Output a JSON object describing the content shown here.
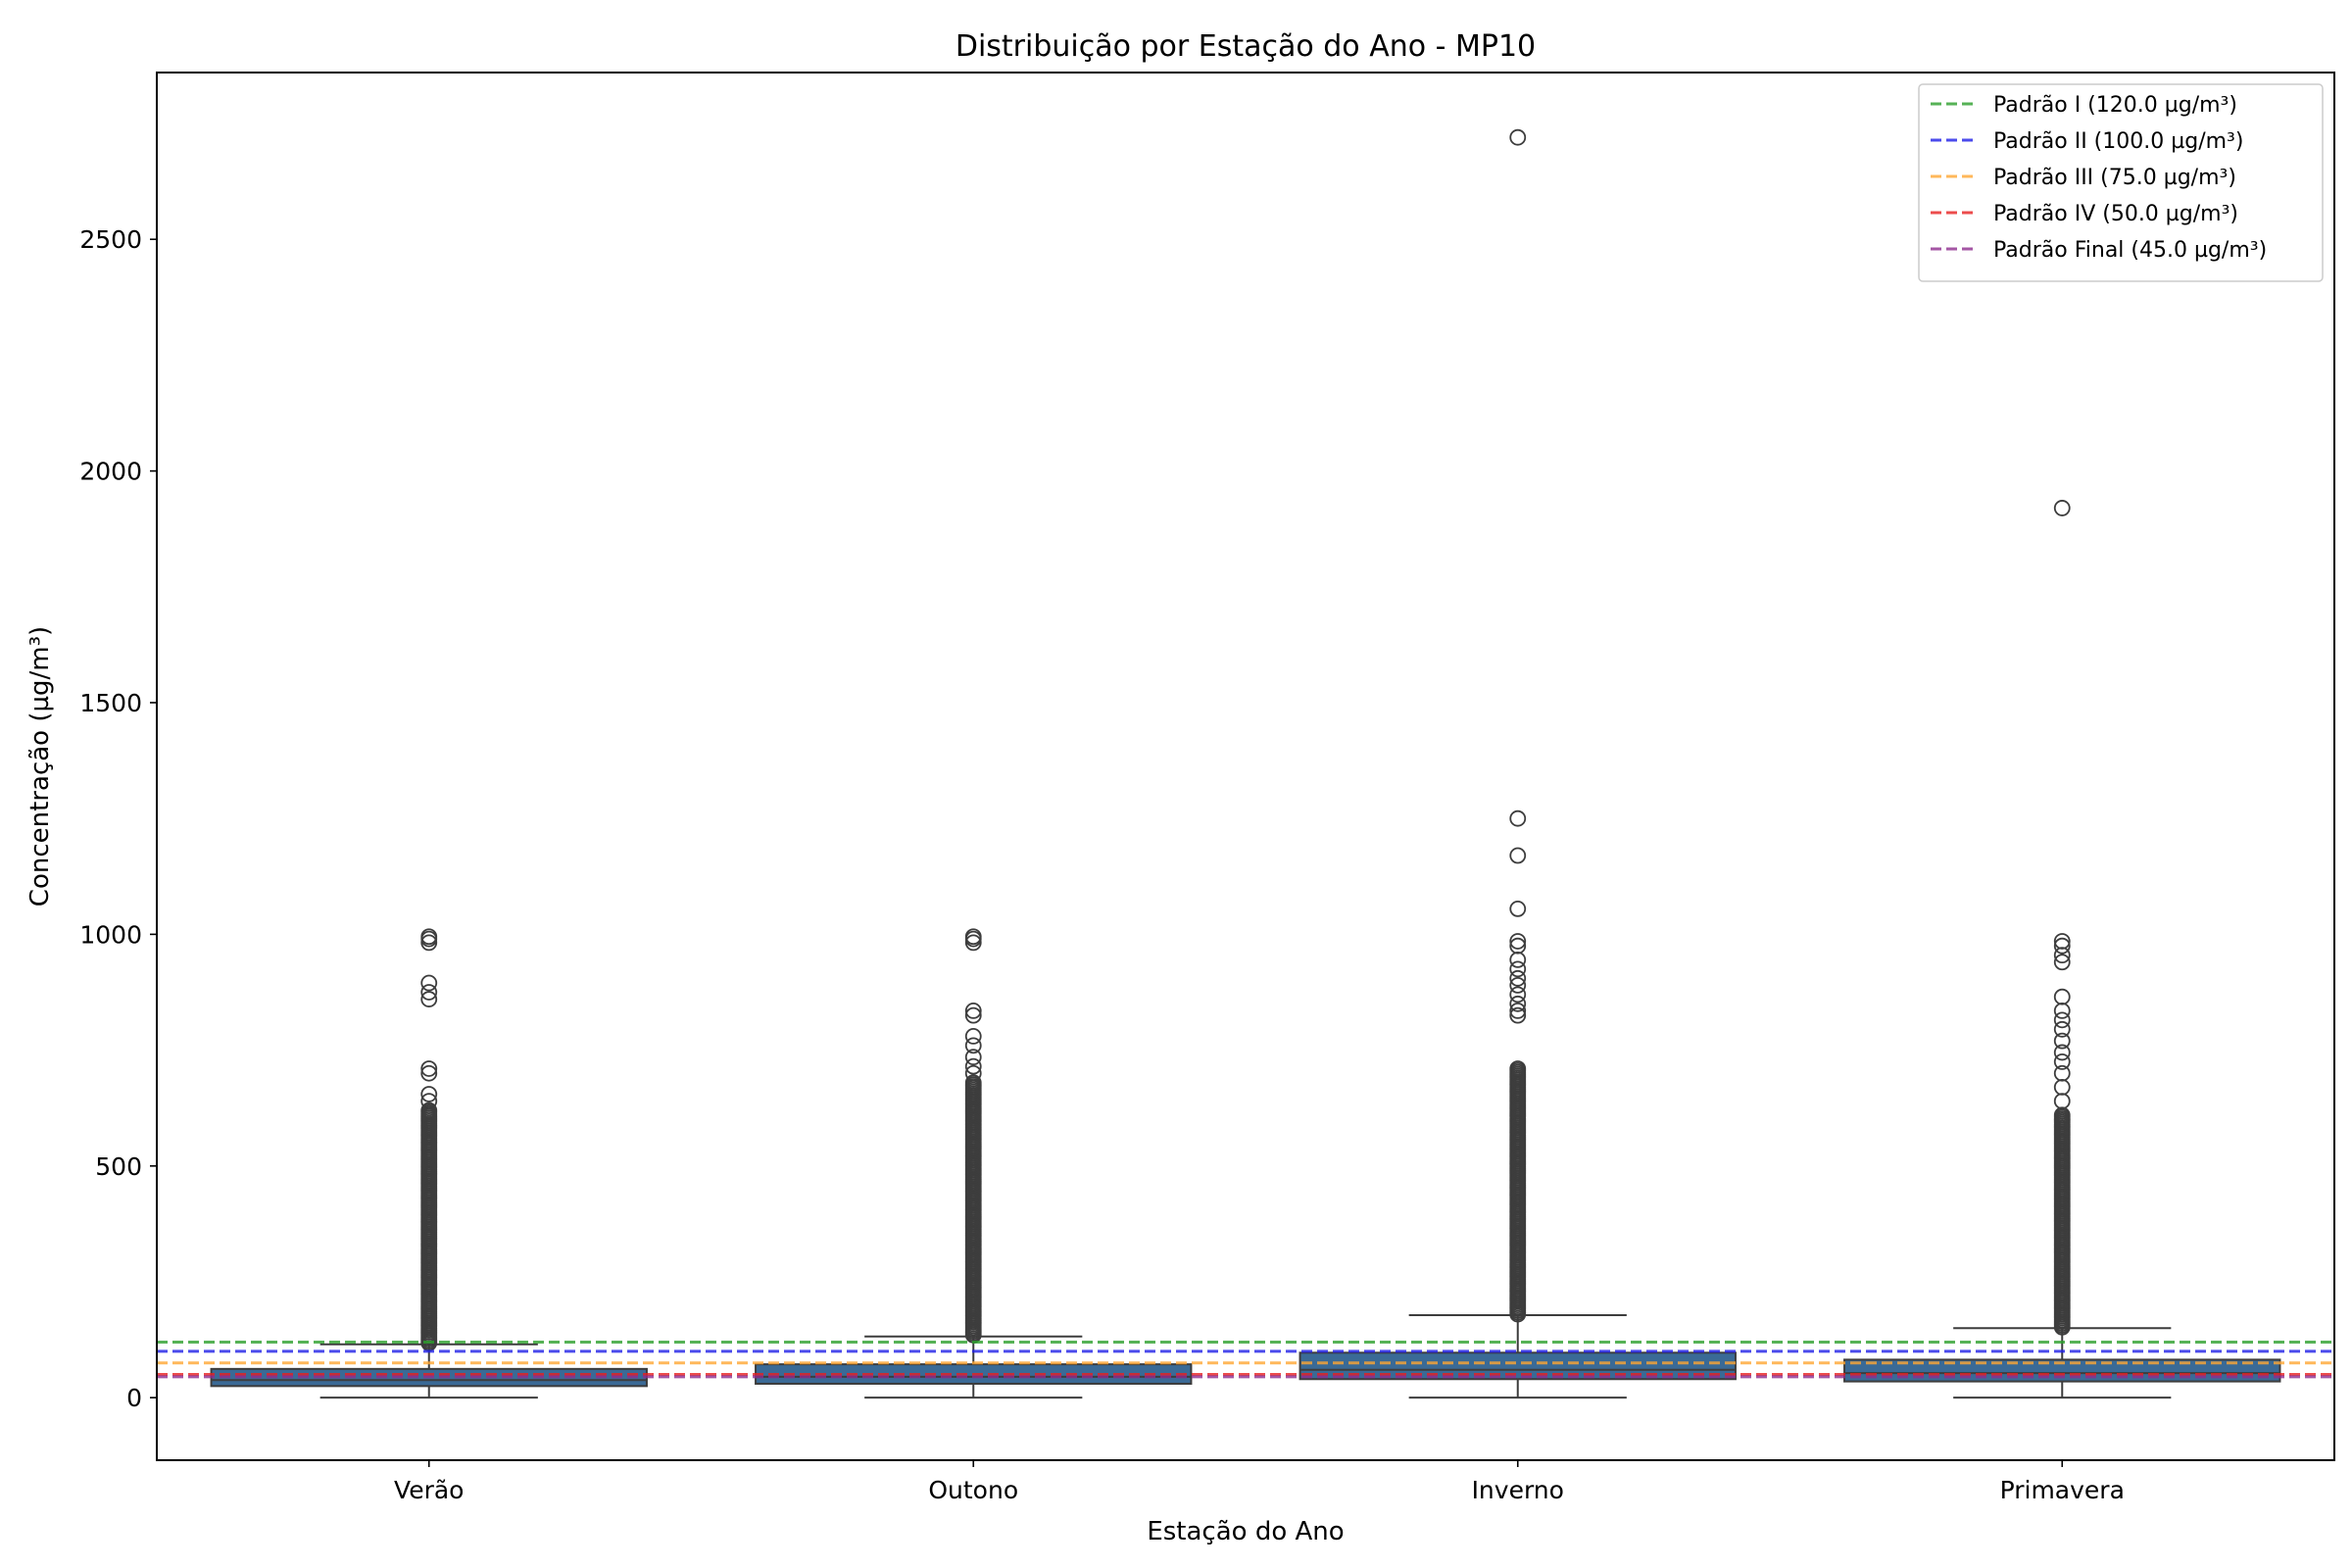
{
  "chart_data": {
    "type": "box",
    "title": "Distribuição por Estação do Ano - MP10",
    "xlabel": "Estação do Ano",
    "ylabel": "Concentração (µg/m³)",
    "ylim": [
      -135,
      2860
    ],
    "yticks": [
      0,
      500,
      1000,
      1500,
      2000,
      2500
    ],
    "categories": [
      "Verão",
      "Outono",
      "Inverno",
      "Primavera"
    ],
    "box_color": "#3a6a96",
    "boxes": [
      {
        "category": "Verão",
        "q1": 25,
        "median": 38,
        "q3": 62,
        "whisker_low": 0,
        "whisker_high": 115,
        "outliers_dense_range": [
          118,
          620
        ],
        "outliers": [
          640,
          655,
          700,
          710,
          860,
          875,
          895,
          982,
          990,
          995
        ]
      },
      {
        "category": "Outono",
        "q1": 30,
        "median": 45,
        "q3": 72,
        "whisker_low": 0,
        "whisker_high": 132,
        "outliers_dense_range": [
          135,
          680
        ],
        "outliers": [
          700,
          715,
          735,
          760,
          780,
          825,
          835,
          982,
          990,
          995
        ]
      },
      {
        "category": "Inverno",
        "q1": 40,
        "median": 60,
        "q3": 97,
        "whisker_low": 0,
        "whisker_high": 178,
        "outliers_dense_range": [
          180,
          710
        ],
        "outliers": [
          825,
          835,
          850,
          870,
          890,
          905,
          925,
          945,
          975,
          985,
          1055,
          1170,
          1250,
          2720
        ]
      },
      {
        "category": "Primavera",
        "q1": 35,
        "median": 53,
        "q3": 82,
        "whisker_low": 0,
        "whisker_high": 150,
        "outliers_dense_range": [
          152,
          610
        ],
        "outliers": [
          640,
          670,
          700,
          725,
          745,
          770,
          795,
          815,
          835,
          865,
          940,
          955,
          975,
          985,
          1920
        ]
      }
    ],
    "reference_lines": [
      {
        "name": "Padrão I (120.0 µg/m³)",
        "value": 120,
        "color": "#2ca02c"
      },
      {
        "name": "Padrão II (100.0 µg/m³)",
        "value": 100,
        "color": "#1f1fe8"
      },
      {
        "name": "Padrão III (75.0 µg/m³)",
        "value": 75,
        "color": "#ffa733"
      },
      {
        "name": "Padrão IV (50.0 µg/m³)",
        "value": 50,
        "color": "#e82020"
      },
      {
        "name": "Padrão Final (45.0 µg/m³)",
        "value": 45,
        "color": "#8e2c8e"
      }
    ],
    "legend_position": "top-right",
    "grid": false
  }
}
